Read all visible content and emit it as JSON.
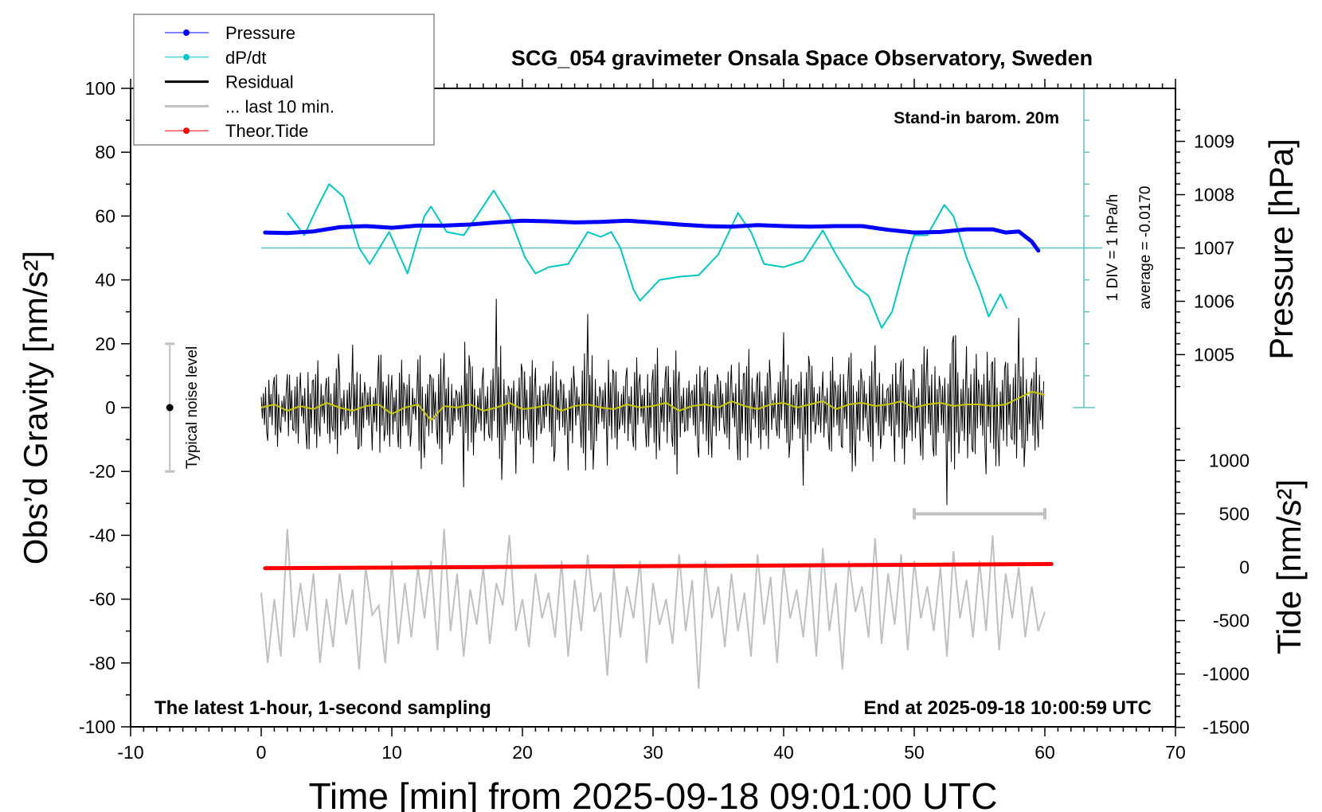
{
  "chart_data": {
    "type": "line",
    "title": "SCG_054 gravimeter Onsala Space Observatory, Sweden",
    "xlabel": "Time [min] from 2025-09-18 09:01:00 UTC",
    "ylabel": "Obs’d Gravity [nm/s²]",
    "ylabel_right_pressure": "Pressure [hPa]",
    "ylabel_right_tide": "Tide [nm/s²]",
    "xlim": [
      -10,
      70
    ],
    "ylim": [
      -100,
      100
    ],
    "x_ticks": [
      "-10",
      "0",
      "10",
      "20",
      "30",
      "40",
      "50",
      "60",
      "70"
    ],
    "y_ticks": [
      "100",
      "80",
      "60",
      "40",
      "20",
      "0",
      "-20",
      "-40",
      "-60",
      "-80",
      "-100"
    ],
    "pressure_ticks": [
      "1009",
      "1008",
      "1007",
      "1006",
      "1005"
    ],
    "tide_ticks": [
      "1000",
      "500",
      "0",
      "-500",
      "-1000",
      "-1500"
    ],
    "annotations": {
      "barometer": "Stand-in barom. 20m",
      "sampling": "The latest 1-hour, 1-second sampling",
      "end_time": "End at 2025-09-18 10:00:59 UTC",
      "div_scale": "1 DIV = 1 hPa/h",
      "average": "average = -0.0170",
      "noise_label": "Typical noise level"
    },
    "legend": {
      "placement": "top-left",
      "entries": [
        {
          "label": "Pressure",
          "color": "#0000ff",
          "marker": true
        },
        {
          "label": "dP/dt",
          "color": "#00c8c8",
          "marker": true
        },
        {
          "label": "Residual",
          "color": "#000000",
          "marker": false
        },
        {
          "label": "... last 10 min.",
          "color": "#c0c0c0",
          "marker": false
        },
        {
          "label": "Theor.Tide",
          "color": "#ff0000",
          "marker": true
        }
      ]
    },
    "series": {
      "pressure_hPa": [
        [
          0.3,
          1007.29
        ],
        [
          2,
          1007.28
        ],
        [
          4,
          1007.31
        ],
        [
          6,
          1007.39
        ],
        [
          8,
          1007.41
        ],
        [
          10,
          1007.38
        ],
        [
          12,
          1007.42
        ],
        [
          14,
          1007.42
        ],
        [
          16,
          1007.44
        ],
        [
          18,
          1007.48
        ],
        [
          20,
          1007.51
        ],
        [
          22,
          1007.5
        ],
        [
          24,
          1007.48
        ],
        [
          26,
          1007.49
        ],
        [
          28,
          1007.51
        ],
        [
          30,
          1007.48
        ],
        [
          32,
          1007.44
        ],
        [
          34,
          1007.41
        ],
        [
          36,
          1007.4
        ],
        [
          38,
          1007.43
        ],
        [
          40,
          1007.41
        ],
        [
          42,
          1007.4
        ],
        [
          44,
          1007.41
        ],
        [
          46,
          1007.41
        ],
        [
          48,
          1007.34
        ],
        [
          50,
          1007.29
        ],
        [
          52,
          1007.3
        ],
        [
          54,
          1007.35
        ],
        [
          56,
          1007.35
        ],
        [
          57,
          1007.29
        ],
        [
          58,
          1007.31
        ],
        [
          59,
          1007.12
        ],
        [
          59.5,
          1006.95
        ]
      ],
      "dpdt_hPa_per_h": [
        [
          2,
          1.1
        ],
        [
          3.3,
          0.4
        ],
        [
          4.2,
          1.2
        ],
        [
          5.2,
          2.0
        ],
        [
          6.3,
          1.6
        ],
        [
          7.5,
          0.0
        ],
        [
          8.3,
          -0.5
        ],
        [
          9.8,
          0.5
        ],
        [
          11.2,
          -0.8
        ],
        [
          12.5,
          1.0
        ],
        [
          13,
          1.3
        ],
        [
          14.2,
          0.5
        ],
        [
          15.5,
          0.4
        ],
        [
          16.5,
          1.0
        ],
        [
          17.8,
          1.8
        ],
        [
          19,
          1.0
        ],
        [
          20.2,
          -0.3
        ],
        [
          21,
          -0.8
        ],
        [
          22,
          -0.6
        ],
        [
          23.5,
          -0.5
        ],
        [
          25,
          0.5
        ],
        [
          26,
          0.35
        ],
        [
          26.8,
          0.5
        ],
        [
          27.5,
          0.0
        ],
        [
          28.5,
          -1.3
        ],
        [
          29,
          -1.65
        ],
        [
          30.5,
          -1.0
        ],
        [
          32,
          -0.9
        ],
        [
          33.5,
          -0.85
        ],
        [
          35,
          -0.2
        ],
        [
          36.5,
          1.1
        ],
        [
          37.5,
          0.5
        ],
        [
          38.5,
          -0.5
        ],
        [
          40,
          -0.6
        ],
        [
          41.5,
          -0.4
        ],
        [
          43,
          0.55
        ],
        [
          44,
          -0.2
        ],
        [
          45.5,
          -1.2
        ],
        [
          46.5,
          -1.5
        ],
        [
          47.5,
          -2.5
        ],
        [
          48.3,
          -2.0
        ],
        [
          49.5,
          -0.2
        ],
        [
          50,
          0.4
        ],
        [
          51,
          0.4
        ],
        [
          52.3,
          1.35
        ],
        [
          53,
          1.0
        ],
        [
          54,
          -0.3
        ],
        [
          55,
          -1.3
        ],
        [
          55.7,
          -2.15
        ],
        [
          56.6,
          -1.45
        ],
        [
          57.1,
          -1.9
        ]
      ],
      "dpdt_average": -0.017,
      "residual_nm_s2": [
        8,
        -10,
        14,
        -6,
        11,
        -12,
        9,
        -15,
        17,
        -8,
        12,
        -18,
        10,
        -9,
        15,
        -13,
        7,
        -11,
        19,
        -14,
        9,
        -16,
        13,
        -7,
        22,
        -12,
        10,
        -19,
        14,
        -10,
        8,
        -22,
        16,
        -9,
        12,
        -14,
        26,
        -11,
        9,
        -17,
        13,
        -20,
        11,
        -8,
        18,
        -13,
        10,
        -15,
        7,
        -21,
        24,
        -12,
        9,
        -16,
        14,
        -10,
        12,
        -18,
        8,
        -13,
        20,
        -11,
        15,
        -24,
        10,
        -9,
        13,
        -15,
        17,
        -12,
        9,
        -14,
        11,
        -19,
        21,
        -10,
        14,
        -16,
        8,
        -13,
        18,
        -11,
        12,
        -20,
        15,
        -9,
        10,
        -17,
        13,
        -12,
        23,
        -14,
        9,
        -18,
        16,
        -10,
        12,
        -15,
        19,
        -13,
        11,
        -22,
        14,
        -16,
        10,
        -25,
        26,
        -12,
        17,
        -18,
        13,
        -20,
        21,
        -14,
        15,
        -17,
        23,
        -12,
        18,
        -11
      ],
      "residual_smoothed_nm_s2": [
        0,
        1,
        -1,
        0.5,
        -0.5,
        1.5,
        0,
        -1,
        0.5,
        1,
        -2,
        0,
        1,
        -4,
        0.5,
        0,
        1,
        -1,
        0,
        1.5,
        -0.5,
        0,
        1,
        -1,
        0.5,
        1,
        0,
        -0.5,
        1,
        0,
        0.5,
        1.5,
        -1,
        0.5,
        1,
        0,
        2,
        0.5,
        -0.5,
        1,
        1.5,
        0,
        1,
        2,
        -0.5,
        1,
        1.5,
        0.5,
        1,
        2,
        0,
        1,
        1.5,
        0.5,
        1,
        1,
        0.5,
        1,
        3,
        5,
        4
      ],
      "last_10_min_nm_s2": [
        -58,
        -80,
        -60,
        -78,
        -38,
        -72,
        -55,
        -70,
        -52,
        -80,
        -60,
        -75,
        -52,
        -68,
        -57,
        -82,
        -50,
        -65,
        -62,
        -80,
        -48,
        -74,
        -55,
        -72,
        -50,
        -66,
        -48,
        -76,
        -38,
        -70,
        -52,
        -78,
        -57,
        -68,
        -50,
        -74,
        -55,
        -62,
        -40,
        -70,
        -60,
        -75,
        -52,
        -66,
        -58,
        -72,
        -48,
        -78,
        -54,
        -70,
        -46,
        -64,
        -58,
        -84,
        -50,
        -72,
        -56,
        -66,
        -48,
        -80,
        -55,
        -68,
        -60,
        -74,
        -46,
        -70,
        -54,
        -88,
        -48,
        -66,
        -56,
        -75,
        -52,
        -70,
        -58,
        -78,
        -46,
        -68,
        -53,
        -80,
        -49,
        -66,
        -57,
        -72,
        -50,
        -78,
        -44,
        -70,
        -55,
        -82,
        -48,
        -64,
        -56,
        -72,
        -41,
        -74,
        -52,
        -68,
        -46,
        -76,
        -48,
        -66,
        -56,
        -70,
        -50,
        -78,
        -45,
        -66,
        -54,
        -72,
        -48,
        -70,
        -40,
        -76,
        -52,
        -66,
        -50,
        -72,
        -56,
        -70,
        -64
      ],
      "last_10_min_window": [
        50,
        60
      ],
      "theor_tide_nm_s2": [
        [
          0.3,
          -10
        ],
        [
          60.5,
          30
        ]
      ],
      "noise_level_range": [
        -20,
        20
      ]
    },
    "colors": {
      "pressure": "#0000ff",
      "dpdt": "#00c8c8",
      "dpdt_ref": "#5ec4c0",
      "residual": "#000000",
      "smoothed": "#c8c800",
      "last10": "#c0c0c0",
      "tide": "#ff0000"
    }
  }
}
